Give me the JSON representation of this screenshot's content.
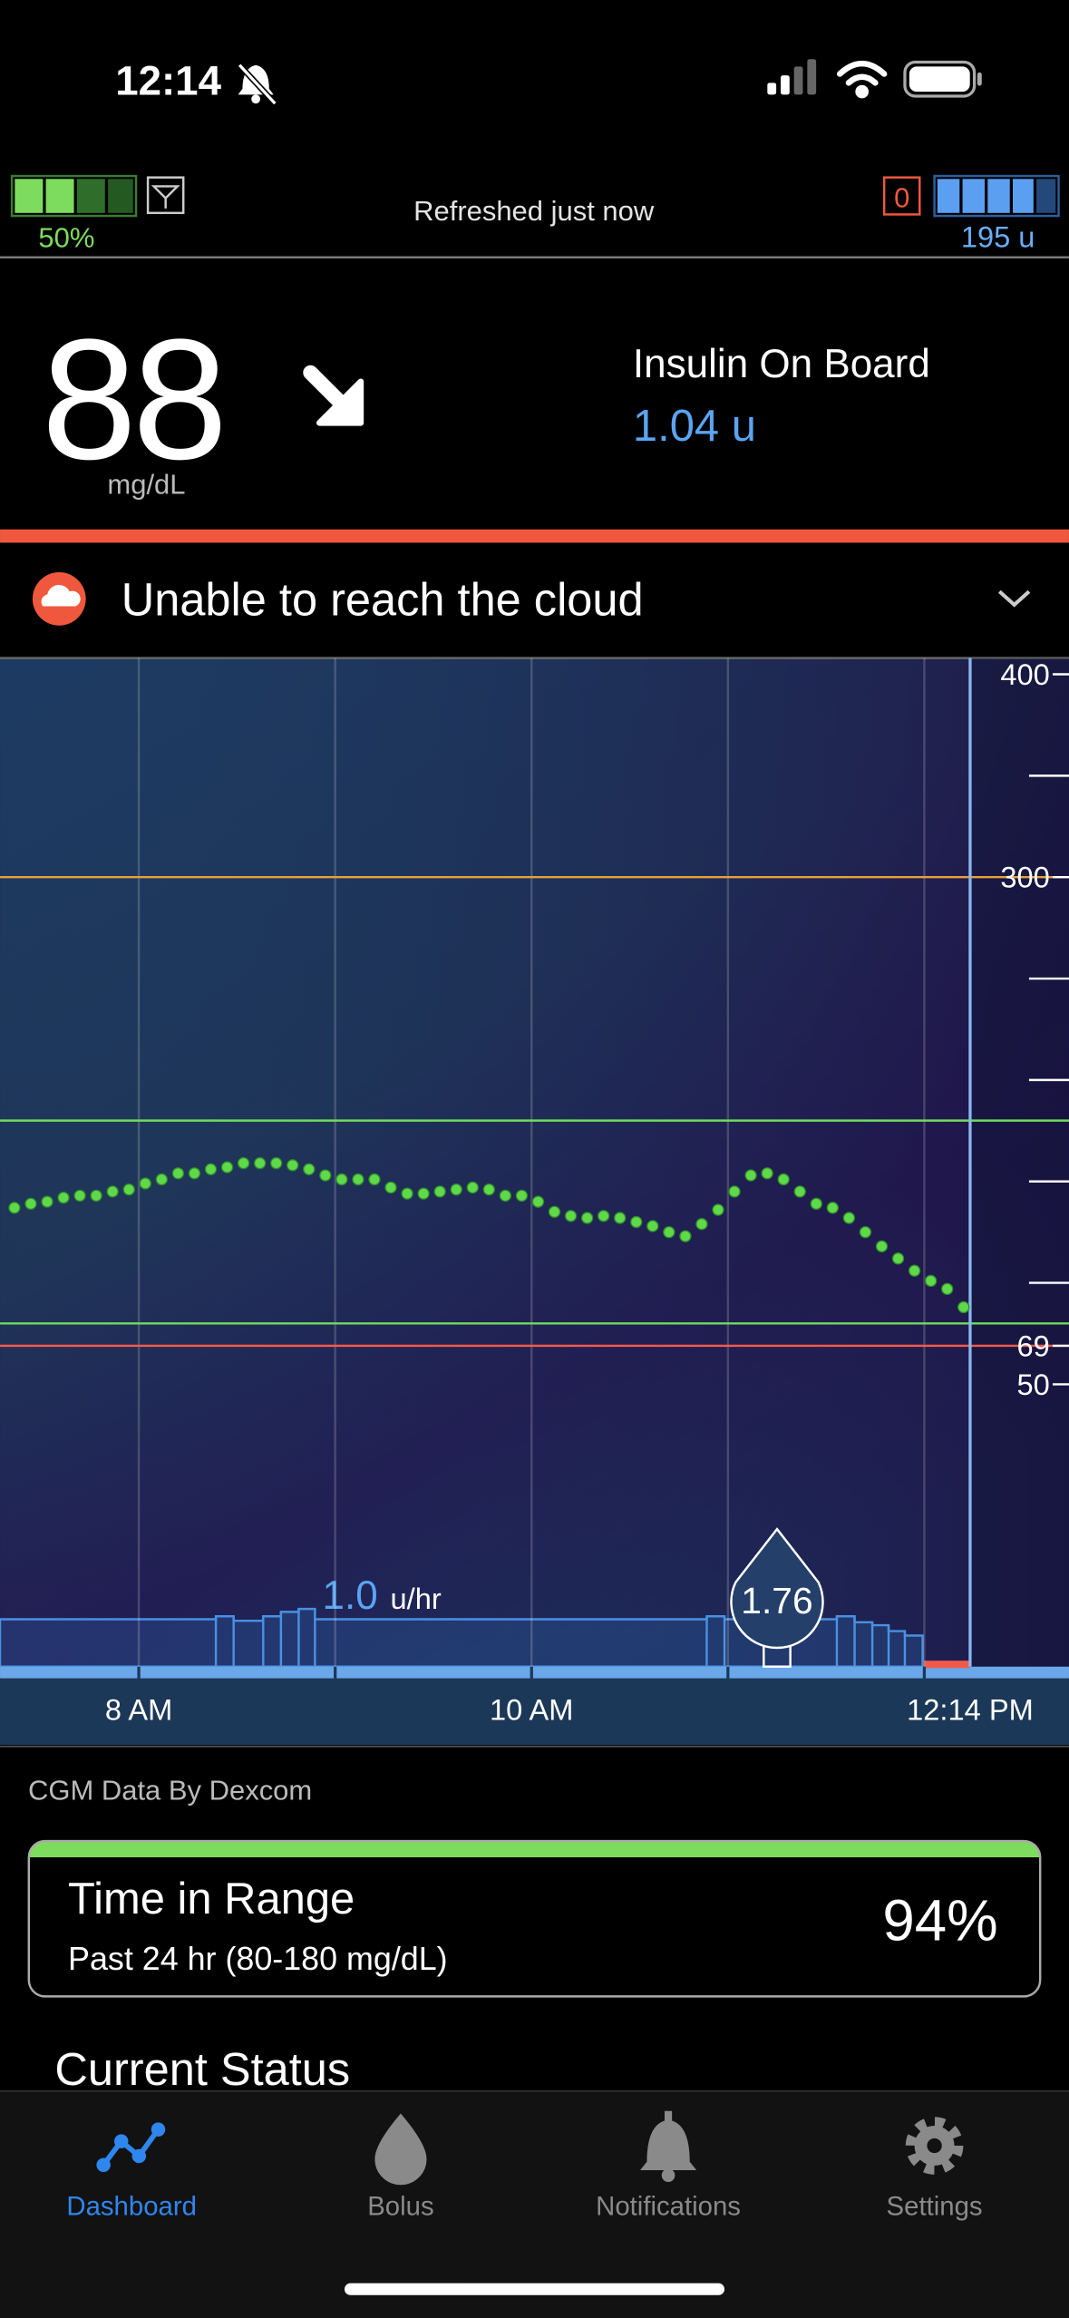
{
  "status_bar": {
    "time": "12:14"
  },
  "header": {
    "pump_battery": "50%",
    "refresh_status": "Refreshed just now",
    "alert_count": "0",
    "reservoir": "195 u"
  },
  "glucose": {
    "value": "88",
    "unit": "mg/dL"
  },
  "iob": {
    "label": "Insulin On Board",
    "value": "1.04 u"
  },
  "alert": {
    "message": "Unable to reach the cloud"
  },
  "chart_data": {
    "type": "scatter",
    "xlim": [
      437.6,
      764.2
    ],
    "ylim": [
      -95,
      408
    ],
    "xticks": [
      {
        "value": 480,
        "label": "8 AM"
      },
      {
        "value": 600,
        "label": "10 AM"
      },
      {
        "value": 734,
        "label": "12:14 PM"
      }
    ],
    "xgrid": [
      480,
      540,
      600,
      660,
      720
    ],
    "now": 734,
    "yticks": [
      400,
      300,
      69,
      50
    ],
    "minor_yticks": [
      350,
      250,
      200,
      150,
      100
    ],
    "lines": [
      {
        "value": 300,
        "color": "#e6a03c"
      },
      {
        "value": 180,
        "color": "#6fdc5a"
      },
      {
        "value": 80,
        "color": "#6fdc5a"
      },
      {
        "value": 69,
        "color": "#ff5a4a"
      }
    ],
    "series": [
      {
        "name": "Glucose",
        "color": "#5fd84a",
        "x": [
          442,
          447,
          452,
          457,
          462,
          467,
          472,
          477,
          482,
          487,
          492,
          497,
          502,
          507,
          512,
          517,
          522,
          527,
          532,
          537,
          542,
          547,
          552,
          557,
          562,
          567,
          572,
          577,
          582,
          587,
          592,
          597,
          602,
          607,
          612,
          617,
          622,
          627,
          632,
          637,
          642,
          647,
          652,
          657,
          662,
          667,
          672,
          677,
          682,
          687,
          692,
          697,
          702,
          707,
          712,
          717,
          722,
          727,
          732
        ],
        "values": [
          137,
          139,
          140,
          142,
          143,
          143,
          145,
          146,
          149,
          151,
          154,
          154,
          156,
          157,
          159,
          159,
          159,
          158,
          156,
          153,
          151,
          151,
          151,
          147,
          144,
          144,
          145,
          146,
          147,
          146,
          143,
          143,
          140,
          135,
          133,
          132,
          133,
          132,
          130,
          128,
          125,
          123,
          129,
          136,
          145,
          153,
          154,
          151,
          145,
          139,
          137,
          132,
          125,
          118,
          112,
          106,
          101,
          97,
          88
        ]
      }
    ],
    "basal_rate": "1.0",
    "basal_unit": "u/hr",
    "bolus": {
      "x": 675,
      "value": 1.76
    }
  },
  "cgm_source": "CGM Data By Dexcom",
  "time_in_range": {
    "title": "Time in Range",
    "subtitle": "Past 24 hr (80-180 mg/dL)",
    "value": "94%"
  },
  "section_title": "Current Status",
  "tabs": [
    {
      "label": "Dashboard"
    },
    {
      "label": "Bolus"
    },
    {
      "label": "Notifications"
    },
    {
      "label": "Settings"
    }
  ],
  "active_tab": "Dashboard"
}
